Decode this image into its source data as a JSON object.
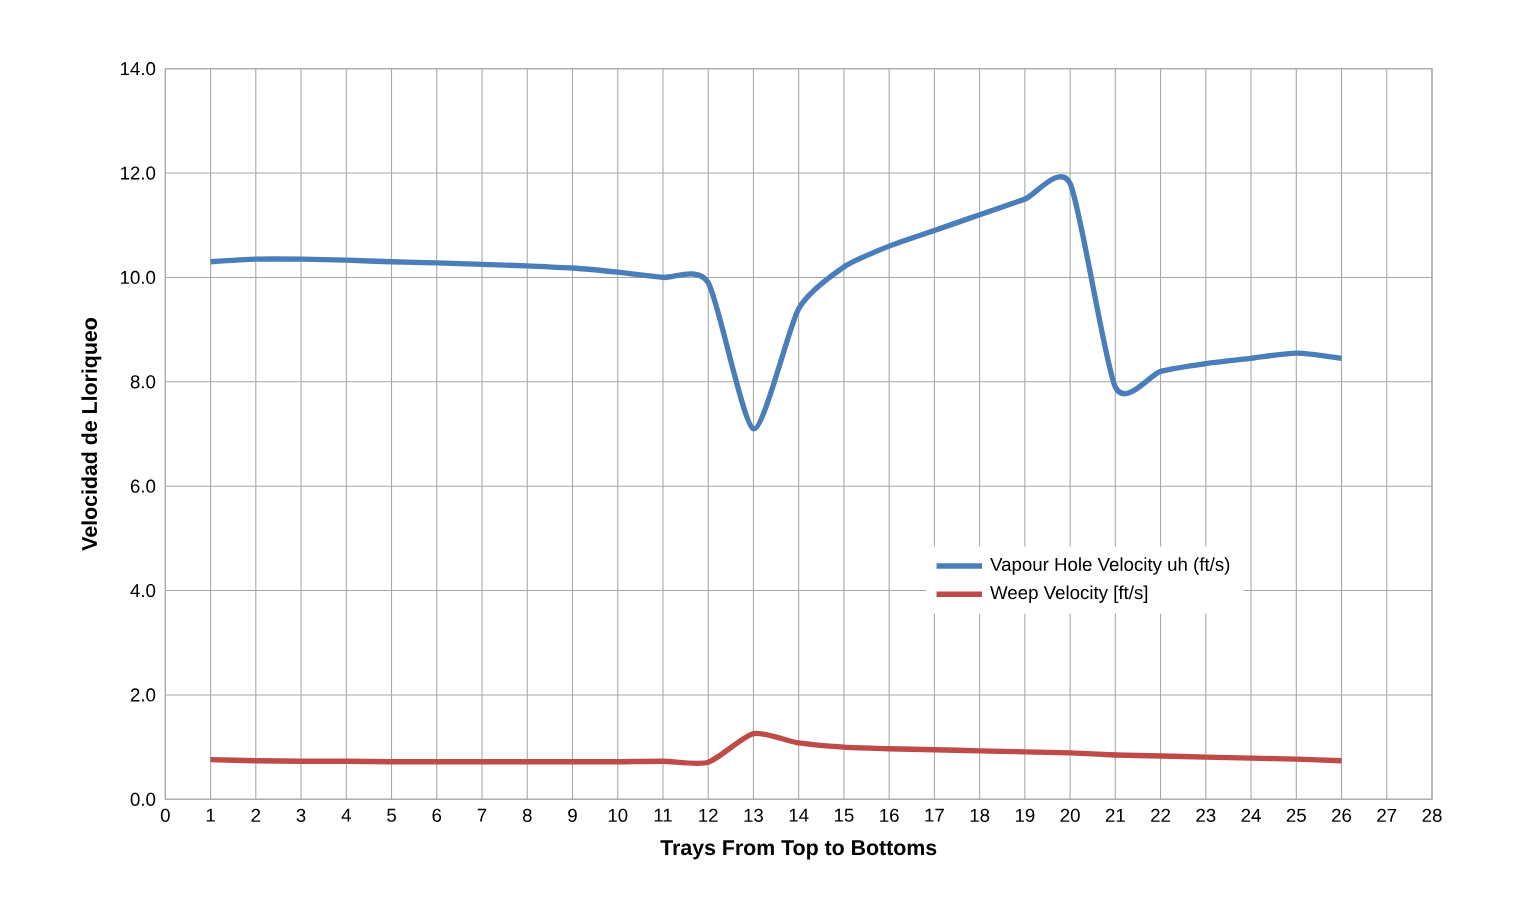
{
  "chart_data": {
    "type": "line",
    "xlabel": "Trays From Top to Bottoms",
    "ylabel": "Velocidad de Lloriqueo",
    "x": [
      1,
      2,
      3,
      4,
      5,
      6,
      7,
      8,
      9,
      10,
      11,
      12,
      13,
      14,
      15,
      16,
      17,
      18,
      19,
      20,
      21,
      22,
      23,
      24,
      25,
      26
    ],
    "series": [
      {
        "name": "Vapour Hole Velocity  uh (ft/s)",
        "color": "#4a7ebb",
        "values": [
          10.3,
          10.35,
          10.35,
          10.33,
          10.3,
          10.28,
          10.25,
          10.22,
          10.18,
          10.1,
          10.0,
          9.9,
          7.1,
          9.4,
          10.2,
          10.6,
          10.9,
          11.2,
          11.5,
          11.8,
          7.9,
          8.2,
          8.35,
          8.45,
          8.55,
          8.45
        ]
      },
      {
        "name": "Weep Velocity [ft/s]",
        "color": "#be4b48",
        "values": [
          0.76,
          0.74,
          0.73,
          0.73,
          0.72,
          0.72,
          0.72,
          0.72,
          0.72,
          0.72,
          0.73,
          0.71,
          1.26,
          1.08,
          1.0,
          0.97,
          0.95,
          0.93,
          0.91,
          0.89,
          0.85,
          0.83,
          0.81,
          0.79,
          0.77,
          0.74
        ]
      }
    ],
    "xlim": [
      0,
      28
    ],
    "xticks": [
      0,
      1,
      2,
      3,
      4,
      5,
      6,
      7,
      8,
      9,
      10,
      11,
      12,
      13,
      14,
      15,
      16,
      17,
      18,
      19,
      20,
      21,
      22,
      23,
      24,
      25,
      26,
      27,
      28
    ],
    "ylim": [
      0,
      14
    ],
    "yticks": [
      {
        "value": 0,
        "label": "0.0"
      },
      {
        "value": 2,
        "label": "2.0"
      },
      {
        "value": 4,
        "label": "4.0"
      },
      {
        "value": 6,
        "label": "6.0"
      },
      {
        "value": 8,
        "label": "8.0"
      },
      {
        "value": 10,
        "label": "10.0"
      },
      {
        "value": 12,
        "label": "12.0"
      },
      {
        "value": 14,
        "label": "14.0"
      }
    ],
    "grid": true,
    "legend": "right",
    "marker": "none",
    "line_style": "solid"
  }
}
